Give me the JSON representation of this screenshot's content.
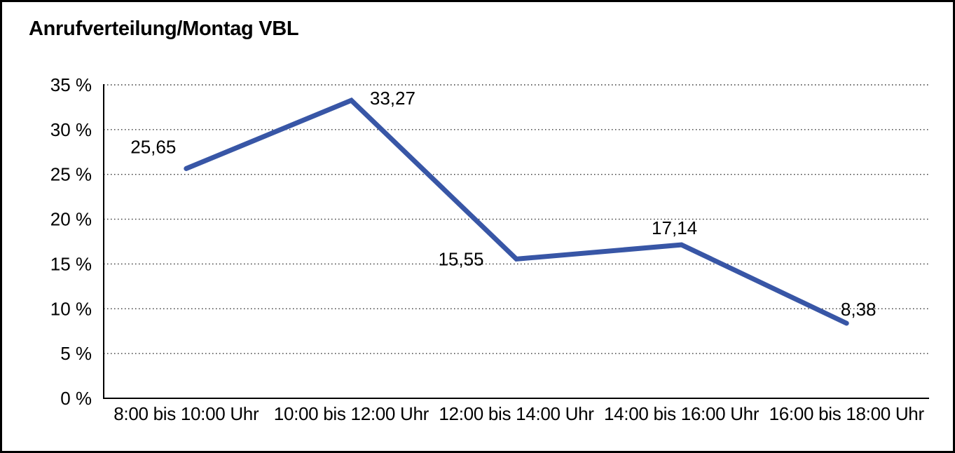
{
  "title": "Anrufverteilung/Montag VBL",
  "chart_data": {
    "type": "line",
    "title": "Anrufverteilung/Montag VBL",
    "categories": [
      "8:00 bis 10:00 Uhr",
      "10:00 bis 12:00 Uhr",
      "12:00 bis 14:00 Uhr",
      "14:00 bis 16:00 Uhr",
      "16:00 bis 18:00 Uhr"
    ],
    "values": [
      25.65,
      33.27,
      15.55,
      17.14,
      8.38
    ],
    "value_labels": [
      "25,65",
      "33,27",
      "15,55",
      "17,14",
      "8,38"
    ],
    "xlabel": "",
    "ylabel": "",
    "ylim": [
      0,
      35
    ],
    "y_tick_values": [
      35,
      30,
      25,
      20,
      15,
      10,
      5,
      0
    ],
    "y_tick_labels": [
      "35 %",
      "30 %",
      "25 %",
      "20 %",
      "15 %",
      "10 %",
      "5 %",
      "0 %"
    ],
    "grid": "horizontal-dotted",
    "legend": "none",
    "line_color": "#3856A6",
    "axis_color": "#000000",
    "gridline_color": "#333333"
  }
}
